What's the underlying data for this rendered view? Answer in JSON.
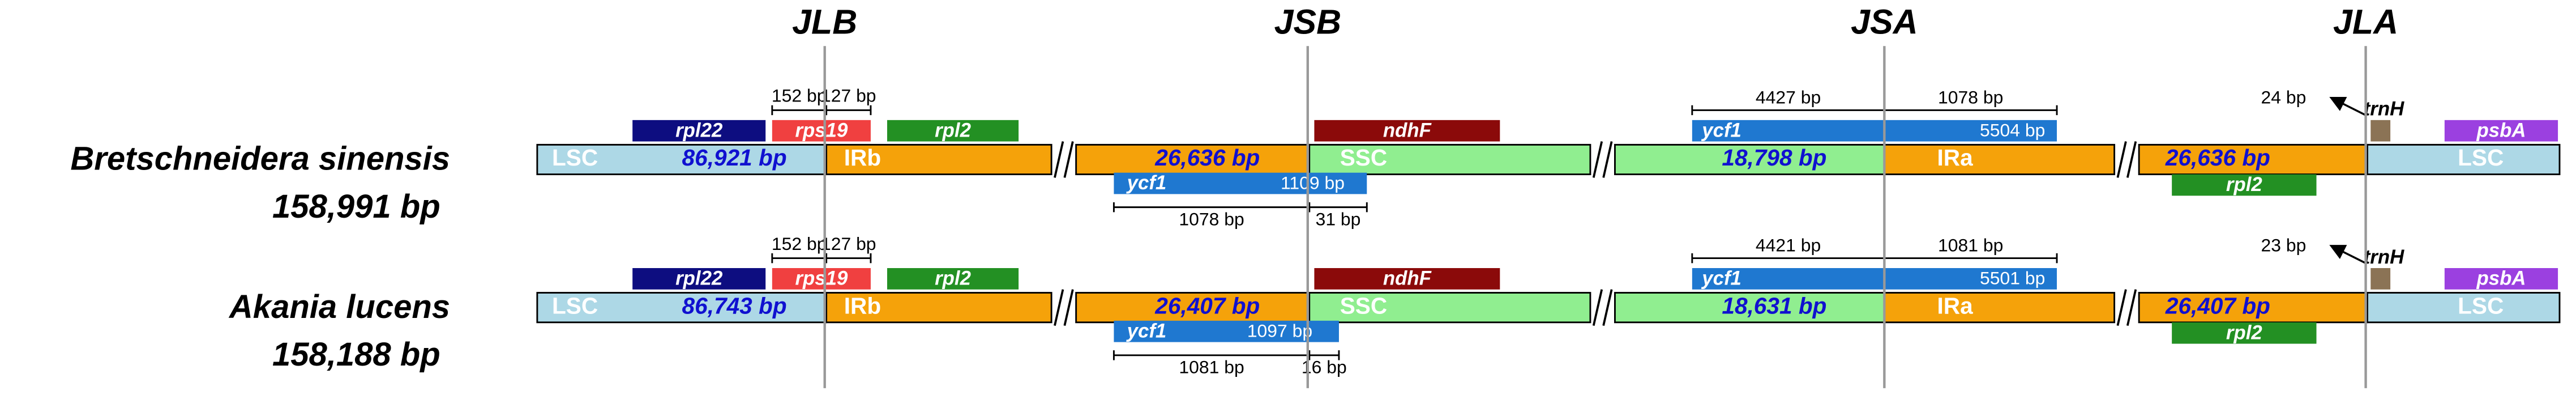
{
  "junctions": [
    "JLB",
    "JSB",
    "JSA",
    "JLA"
  ],
  "genomes": [
    {
      "name": "Bretschneidera sinensis",
      "size": "158,991 bp",
      "regions": [
        "LSC",
        "IRb",
        "SSC",
        "IRa",
        "LSC"
      ],
      "region_lengths": [
        "86,921 bp",
        "26,636 bp",
        "18,798 bp",
        "26,636 bp"
      ],
      "genes_above": [
        "rpl22",
        "rps19",
        "rpl2",
        "ndhF",
        "ycf1",
        "trnH",
        "psbA"
      ],
      "genes_below": [
        "ycf1",
        "rpl2"
      ],
      "ycf1_above_length": "5504 bp",
      "ycf1_below_length": "1109 bp",
      "spans": {
        "jlb": [
          "152 bp",
          "127 bp"
        ],
        "jsb": [
          "1078 bp",
          "31 bp"
        ],
        "jsa": [
          "4427 bp",
          "1078 bp"
        ],
        "jla": "24 bp"
      }
    },
    {
      "name": "Akania lucens",
      "size": "158,188 bp",
      "regions": [
        "LSC",
        "IRb",
        "SSC",
        "IRa",
        "LSC"
      ],
      "region_lengths": [
        "86,743 bp",
        "26,407 bp",
        "18,631 bp",
        "26,407 bp"
      ],
      "genes_above": [
        "rpl22",
        "rps19",
        "rpl2",
        "ndhF",
        "ycf1",
        "trnH",
        "psbA"
      ],
      "genes_below": [
        "ycf1",
        "rpl2"
      ],
      "ycf1_above_length": "5501 bp",
      "ycf1_below_length": "1097 bp",
      "spans": {
        "jlb": [
          "152 bp",
          "127 bp"
        ],
        "jsb": [
          "1081 bp",
          "16 bp"
        ],
        "jsa": [
          "4421 bp",
          "1081 bp"
        ],
        "jla": "23 bp"
      }
    }
  ]
}
